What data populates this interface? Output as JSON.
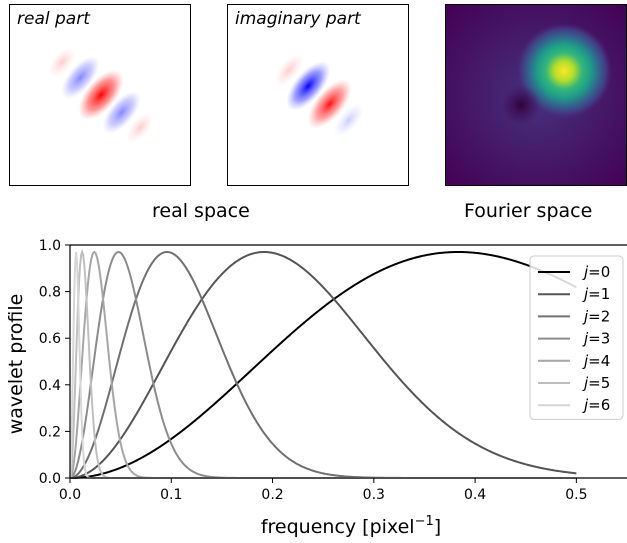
{
  "panels": {
    "real": {
      "label": "real part"
    },
    "imaginary": {
      "label": "imaginary part"
    }
  },
  "space_labels": {
    "real": "real space",
    "fourier": "Fourier space"
  },
  "chart_data": {
    "type": "line",
    "xlabel": "frequency [pixel",
    "xlabel_sup": "−1",
    "xlabel_end": "]",
    "ylabel": "wavelet profile",
    "xlim": [
      0,
      0.55
    ],
    "ylim": [
      0,
      1.0
    ],
    "xticks": [
      "0.0",
      "0.1",
      "0.2",
      "0.3",
      "0.4",
      "0.5"
    ],
    "yticks": [
      "0.0",
      "0.2",
      "0.4",
      "0.6",
      "0.8",
      "1.0"
    ],
    "legend_position": "top-right",
    "peak": 0.97,
    "series": [
      {
        "name": "j",
        "label_suffix": "=0",
        "peak_freq": 0.3833,
        "color": "#000000"
      },
      {
        "name": "j",
        "label_suffix": "=1",
        "peak_freq": 0.1917,
        "color": "#555555"
      },
      {
        "name": "j",
        "label_suffix": "=2",
        "peak_freq": 0.0958,
        "color": "#707070"
      },
      {
        "name": "j",
        "label_suffix": "=3",
        "peak_freq": 0.0479,
        "color": "#8c8c8c"
      },
      {
        "name": "j",
        "label_suffix": "=4",
        "peak_freq": 0.024,
        "color": "#a6a6a6"
      },
      {
        "name": "j",
        "label_suffix": "=5",
        "peak_freq": 0.012,
        "color": "#bfbfbf"
      },
      {
        "name": "j",
        "label_suffix": "=6",
        "peak_freq": 0.006,
        "color": "#d6d6d6"
      }
    ],
    "curve_x_max": 0.5
  }
}
